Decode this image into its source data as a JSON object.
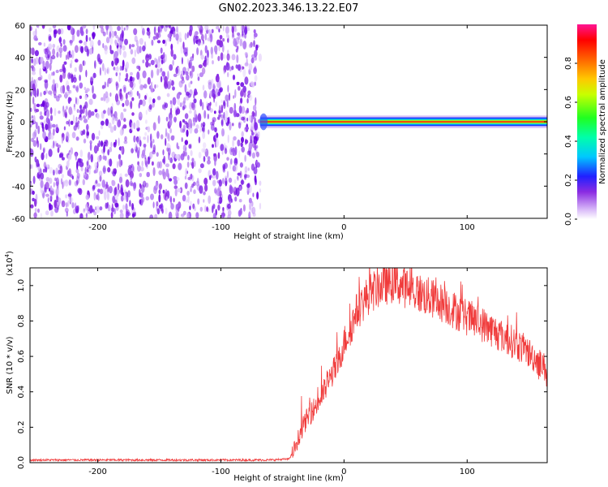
{
  "title": "GN02.2023.346.13.22.E07",
  "colors": {
    "snr_line": "#f03a3a",
    "spectrogram_noise": "#8a2be2",
    "band_core": "#d42020"
  },
  "chart_data": [
    {
      "type": "heatmap",
      "name": "spectrogram",
      "xlabel": "Height of straight line (km)",
      "ylabel": "Frequency (Hz)",
      "xlim": [
        -255,
        165
      ],
      "ylim": [
        -60,
        60
      ],
      "x_ticks": [
        -200,
        -100,
        0,
        100
      ],
      "x_tick_labels": [
        "-200",
        "-100",
        "0",
        "100"
      ],
      "y_ticks": [
        60,
        40,
        20,
        0,
        -20,
        -40,
        -60
      ],
      "y_tick_labels": [
        "60",
        "40",
        "20",
        "0",
        "-20",
        "-40",
        "-60"
      ],
      "noise_region_x": [
        -255,
        -68
      ],
      "signal_band": {
        "x_start": -68,
        "x_end": 165,
        "frequency": 0,
        "half_width": 1.5
      },
      "colorbar": {
        "label": "Normalized spectral amplitude",
        "range": [
          0,
          1
        ],
        "ticks": [
          0.0,
          0.2,
          0.4,
          0.6,
          0.8
        ],
        "tick_labels": [
          "0.0",
          "0.2",
          "0.4",
          "0.6",
          "0.8"
        ]
      }
    },
    {
      "type": "line",
      "name": "snr",
      "xlabel": "Height of straight line (km)",
      "ylabel": "SNR (10 * v/v)",
      "y_scale_label": "(x10",
      "y_scale_exponent": "4",
      "y_scale_suffix": ")",
      "xlim": [
        -255,
        165
      ],
      "ylim": [
        0,
        1.1
      ],
      "x_ticks": [
        -200,
        -100,
        0,
        100
      ],
      "x_tick_labels": [
        "-200",
        "-100",
        "0",
        "100"
      ],
      "y_ticks": [
        0.0,
        0.2,
        0.4,
        0.6,
        0.8,
        1.0
      ],
      "y_tick_labels": [
        "0.0",
        "0.2",
        "0.4",
        "0.6",
        "0.8",
        "1.0"
      ],
      "series": [
        {
          "name": "SNR",
          "x": [
            -255,
            -200,
            -150,
            -100,
            -60,
            -45,
            -42,
            -38,
            -35,
            -30,
            -25,
            -20,
            -15,
            -10,
            -5,
            0,
            5,
            10,
            20,
            30,
            40,
            50,
            60,
            70,
            80,
            90,
            100,
            110,
            120,
            130,
            140,
            150,
            160,
            165
          ],
          "y": [
            0.015,
            0.015,
            0.015,
            0.015,
            0.015,
            0.02,
            0.05,
            0.12,
            0.18,
            0.25,
            0.3,
            0.35,
            0.42,
            0.5,
            0.55,
            0.68,
            0.75,
            0.85,
            0.95,
            1.0,
            1.02,
            0.99,
            0.96,
            0.93,
            0.9,
            0.86,
            0.82,
            0.79,
            0.75,
            0.71,
            0.67,
            0.62,
            0.56,
            0.52
          ]
        }
      ]
    }
  ]
}
